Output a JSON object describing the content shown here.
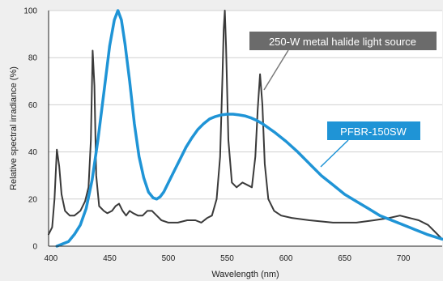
{
  "chart_data": {
    "type": "line",
    "xlabel": "Wavelength (nm)",
    "ylabel": "Relative spectral irradiance (%)",
    "xlim": [
      398,
      733
    ],
    "ylim": [
      0,
      100
    ],
    "x_ticks": [
      400,
      450,
      500,
      550,
      600,
      650,
      700
    ],
    "y_ticks": [
      0,
      20,
      40,
      60,
      80,
      100
    ],
    "grid": "horizontal",
    "series": [
      {
        "name": "250-W metal halide light source",
        "color": "#3a3a3a",
        "points": [
          [
            398,
            5
          ],
          [
            401,
            8
          ],
          [
            403,
            20
          ],
          [
            405,
            41
          ],
          [
            407,
            34
          ],
          [
            409,
            22
          ],
          [
            412,
            15
          ],
          [
            416,
            13
          ],
          [
            420,
            13
          ],
          [
            425,
            15
          ],
          [
            429,
            19
          ],
          [
            432,
            25
          ],
          [
            434,
            45
          ],
          [
            435.5,
            83
          ],
          [
            437,
            68
          ],
          [
            438.5,
            30
          ],
          [
            441,
            17
          ],
          [
            445,
            15
          ],
          [
            448,
            14
          ],
          [
            452,
            15
          ],
          [
            455,
            17
          ],
          [
            458,
            18
          ],
          [
            461,
            15
          ],
          [
            464,
            13
          ],
          [
            467,
            15
          ],
          [
            470,
            14
          ],
          [
            474,
            13
          ],
          [
            478,
            13
          ],
          [
            482,
            15
          ],
          [
            486,
            15
          ],
          [
            490,
            13
          ],
          [
            494,
            11
          ],
          [
            500,
            10
          ],
          [
            508,
            10
          ],
          [
            516,
            11
          ],
          [
            523,
            11
          ],
          [
            528,
            10
          ],
          [
            533,
            12
          ],
          [
            537,
            13
          ],
          [
            541,
            20
          ],
          [
            544,
            38
          ],
          [
            546,
            72
          ],
          [
            547,
            92
          ],
          [
            548,
            100
          ],
          [
            549,
            85
          ],
          [
            551,
            45
          ],
          [
            554,
            27
          ],
          [
            558,
            25
          ],
          [
            563,
            27
          ],
          [
            567,
            26
          ],
          [
            571,
            25
          ],
          [
            574,
            38
          ],
          [
            576,
            58
          ],
          [
            578,
            73
          ],
          [
            580,
            60
          ],
          [
            582,
            35
          ],
          [
            585,
            20
          ],
          [
            590,
            15
          ],
          [
            596,
            13
          ],
          [
            605,
            12
          ],
          [
            620,
            11
          ],
          [
            640,
            10
          ],
          [
            660,
            10
          ],
          [
            675,
            11
          ],
          [
            688,
            12
          ],
          [
            697,
            13
          ],
          [
            705,
            12
          ],
          [
            713,
            11
          ],
          [
            721,
            9
          ],
          [
            727,
            6
          ],
          [
            733,
            3
          ]
        ]
      },
      {
        "name": "PFBR-150SW",
        "color": "#1f94d6",
        "points": [
          [
            405,
            0
          ],
          [
            410,
            1
          ],
          [
            415,
            2
          ],
          [
            420,
            5
          ],
          [
            425,
            9
          ],
          [
            430,
            16
          ],
          [
            435,
            28
          ],
          [
            440,
            45
          ],
          [
            445,
            65
          ],
          [
            450,
            85
          ],
          [
            454,
            96
          ],
          [
            457,
            100
          ],
          [
            460,
            96
          ],
          [
            463,
            86
          ],
          [
            467,
            70
          ],
          [
            471,
            52
          ],
          [
            475,
            38
          ],
          [
            479,
            29
          ],
          [
            483,
            23
          ],
          [
            487,
            20.5
          ],
          [
            490,
            20
          ],
          [
            493,
            21
          ],
          [
            496,
            23
          ],
          [
            500,
            27
          ],
          [
            505,
            32
          ],
          [
            510,
            37
          ],
          [
            515,
            42
          ],
          [
            520,
            46
          ],
          [
            525,
            49.5
          ],
          [
            530,
            52
          ],
          [
            535,
            54
          ],
          [
            540,
            55
          ],
          [
            545,
            55.7
          ],
          [
            550,
            56
          ],
          [
            555,
            56
          ],
          [
            560,
            55.7
          ],
          [
            565,
            55.3
          ],
          [
            570,
            54.5
          ],
          [
            575,
            53.4
          ],
          [
            580,
            52
          ],
          [
            590,
            48.5
          ],
          [
            600,
            44.5
          ],
          [
            610,
            40
          ],
          [
            620,
            35
          ],
          [
            630,
            30
          ],
          [
            640,
            26
          ],
          [
            650,
            22
          ],
          [
            660,
            19
          ],
          [
            670,
            16
          ],
          [
            680,
            13
          ],
          [
            690,
            11
          ],
          [
            700,
            9
          ],
          [
            710,
            7
          ],
          [
            720,
            5
          ],
          [
            733,
            3
          ]
        ]
      }
    ],
    "annotations": [
      {
        "text": "250-W metal halide light source",
        "box_color": "#6b6b6b",
        "leader_color": "#7a7a7a",
        "points_to_x": 578
      },
      {
        "text": "PFBR-150SW",
        "box_color": "#1f94d6",
        "leader_color": "#1f94d6",
        "points_to_x": 628
      }
    ]
  }
}
